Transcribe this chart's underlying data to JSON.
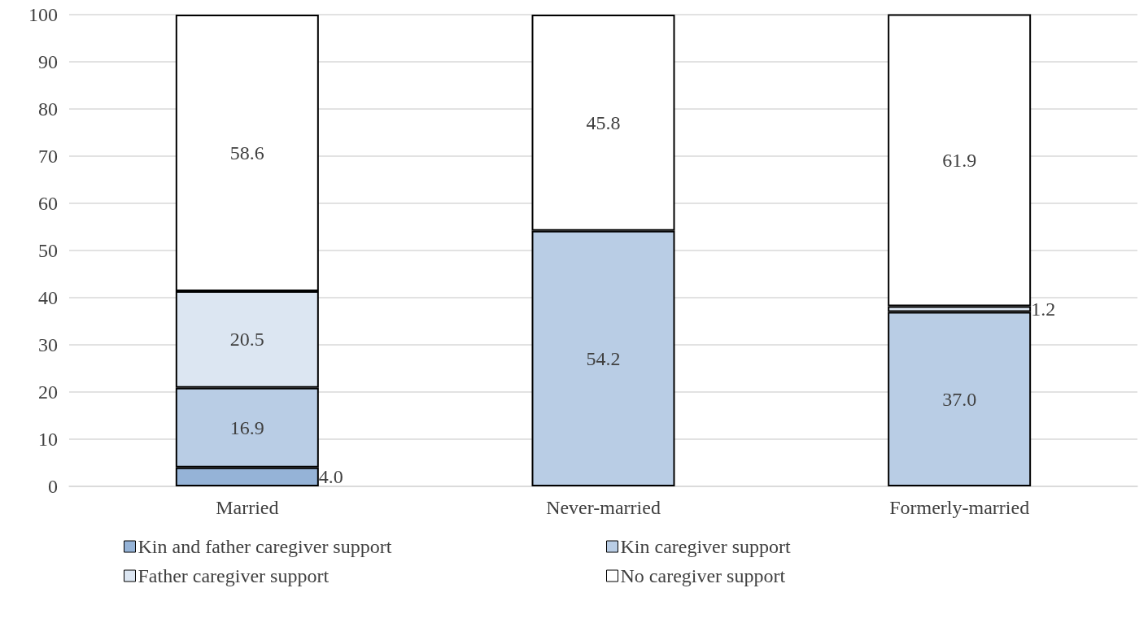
{
  "chart_data": {
    "type": "bar",
    "stacked": true,
    "categories": [
      "Married",
      "Never-married",
      "Formerly-married"
    ],
    "series": [
      {
        "name": "Kin and father caregiver support",
        "color": "#95b3d7",
        "values": [
          4.0,
          null,
          null
        ],
        "value_labels": [
          "4.0",
          null,
          null
        ]
      },
      {
        "name": "Kin caregiver support",
        "color": "#b9cde5",
        "values": [
          16.9,
          54.2,
          37.0
        ],
        "value_labels": [
          "16.9",
          "54.2",
          "37.0"
        ]
      },
      {
        "name": "Father caregiver support",
        "color": "#dce6f2",
        "values": [
          20.5,
          null,
          1.2
        ],
        "value_labels": [
          "20.5",
          null,
          "1.2"
        ]
      },
      {
        "name": "No caregiver support",
        "color": "#ffffff",
        "values": [
          58.6,
          45.8,
          61.9
        ],
        "value_labels": [
          "58.6",
          "45.8",
          "61.9"
        ]
      }
    ],
    "ylim": [
      0,
      100
    ],
    "yticks": [
      0,
      10,
      20,
      30,
      40,
      50,
      60,
      70,
      80,
      90,
      100
    ],
    "grid": "y",
    "legend": "bottom"
  }
}
